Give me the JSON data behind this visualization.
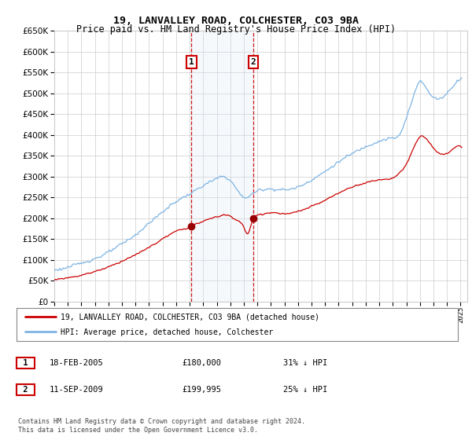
{
  "title": "19, LANVALLEY ROAD, COLCHESTER, CO3 9BA",
  "subtitle": "Price paid vs. HM Land Registry's House Price Index (HPI)",
  "legend_line1": "19, LANVALLEY ROAD, COLCHESTER, CO3 9BA (detached house)",
  "legend_line2": "HPI: Average price, detached house, Colchester",
  "footnote": "Contains HM Land Registry data © Crown copyright and database right 2024.\nThis data is licensed under the Open Government Licence v3.0.",
  "transaction1_date": "18-FEB-2005",
  "transaction1_price": "£180,000",
  "transaction1_hpi": "31% ↓ HPI",
  "transaction1_year": 2005.13,
  "transaction1_value": 180000,
  "transaction2_date": "11-SEP-2009",
  "transaction2_price": "£199,995",
  "transaction2_hpi": "25% ↓ HPI",
  "transaction2_year": 2009.7,
  "transaction2_value": 199995,
  "hpi_color": "#7EB4E3",
  "price_color": "#CC0000",
  "vline_color": "#CC0000",
  "shade_color": "#DAEAF7",
  "marker_color": "#990000",
  "ylim_min": 0,
  "ylim_max": 650000,
  "xlim_min": 1995,
  "xlim_max": 2025.5,
  "background_color": "#ffffff",
  "grid_color": "#cccccc"
}
